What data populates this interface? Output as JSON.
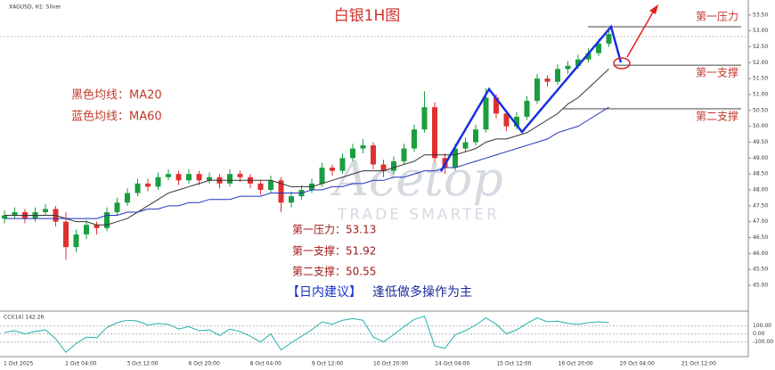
{
  "chart_data": {
    "type": "candlestick",
    "title": "白银1H图",
    "symbol_label": "XAGUSD, H1: Silver",
    "ylim": [
      44.3,
      53.97
    ],
    "yticks": [
      {
        "value": 45.0,
        "label": "45.00"
      },
      {
        "value": 45.5,
        "label": "45.50"
      },
      {
        "value": 46.0,
        "label": "46.00"
      },
      {
        "value": 46.5,
        "label": "46.50"
      },
      {
        "value": 47.0,
        "label": "47.00"
      },
      {
        "value": 47.5,
        "label": "47.50"
      },
      {
        "value": 48.0,
        "label": "48.00"
      },
      {
        "value": 48.5,
        "label": "48.50"
      },
      {
        "value": 49.0,
        "label": "49.00"
      },
      {
        "value": 49.5,
        "label": "49.50"
      },
      {
        "value": 50.0,
        "label": "50.00"
      },
      {
        "value": 50.5,
        "label": "50.50"
      },
      {
        "value": 51.0,
        "label": "51.00"
      },
      {
        "value": 51.5,
        "label": "51.50"
      },
      {
        "value": 52.0,
        "label": "52.00"
      },
      {
        "value": 52.5,
        "label": "52.50"
      },
      {
        "value": 53.0,
        "label": "53.00"
      },
      {
        "value": 53.5,
        "label": "53.50"
      }
    ],
    "up_color": "#1a9e3f",
    "down_color": "#e03030",
    "candles": [
      [
        47.1,
        47.35,
        46.95,
        47.2
      ],
      [
        47.2,
        47.45,
        47.1,
        47.3
      ],
      [
        47.3,
        47.4,
        46.95,
        47.1
      ],
      [
        47.1,
        47.45,
        47.0,
        47.3
      ],
      [
        47.3,
        47.55,
        47.2,
        47.4
      ],
      [
        47.4,
        47.5,
        46.85,
        47.0
      ],
      [
        47.0,
        47.3,
        45.8,
        46.2
      ],
      [
        46.2,
        46.75,
        46.05,
        46.6
      ],
      [
        46.6,
        47.05,
        46.45,
        46.9
      ],
      [
        46.9,
        47.0,
        46.6,
        46.8
      ],
      [
        46.8,
        47.45,
        46.7,
        47.3
      ],
      [
        47.3,
        47.75,
        47.2,
        47.6
      ],
      [
        47.6,
        48.05,
        47.5,
        47.9
      ],
      [
        47.9,
        48.35,
        47.8,
        48.2
      ],
      [
        48.2,
        48.35,
        47.95,
        48.1
      ],
      [
        48.1,
        48.55,
        48.0,
        48.4
      ],
      [
        48.4,
        48.65,
        48.3,
        48.5
      ],
      [
        48.5,
        48.6,
        48.15,
        48.3
      ],
      [
        48.3,
        48.65,
        48.2,
        48.5
      ],
      [
        48.5,
        48.6,
        48.15,
        48.3
      ],
      [
        48.3,
        48.55,
        48.2,
        48.4
      ],
      [
        48.4,
        48.5,
        48.05,
        48.2
      ],
      [
        48.2,
        48.65,
        48.1,
        48.5
      ],
      [
        48.5,
        48.6,
        48.25,
        48.4
      ],
      [
        48.4,
        48.5,
        48.05,
        48.2
      ],
      [
        48.2,
        48.3,
        47.85,
        48.0
      ],
      [
        48.0,
        48.45,
        47.9,
        48.3
      ],
      [
        48.3,
        48.4,
        47.3,
        47.6
      ],
      [
        47.6,
        47.95,
        47.45,
        47.8
      ],
      [
        47.8,
        48.15,
        47.7,
        48.0
      ],
      [
        48.0,
        48.35,
        47.9,
        48.2
      ],
      [
        48.2,
        48.85,
        48.1,
        48.7
      ],
      [
        48.7,
        48.8,
        48.45,
        48.6
      ],
      [
        48.6,
        49.15,
        48.5,
        49.0
      ],
      [
        49.0,
        49.45,
        48.9,
        49.3
      ],
      [
        49.3,
        49.6,
        49.15,
        49.4
      ],
      [
        49.4,
        49.5,
        48.65,
        48.8
      ],
      [
        48.8,
        48.95,
        48.4,
        48.6
      ],
      [
        48.6,
        49.05,
        48.5,
        48.9
      ],
      [
        48.9,
        49.45,
        48.8,
        49.3
      ],
      [
        49.3,
        50.05,
        49.2,
        49.9
      ],
      [
        49.9,
        51.1,
        49.8,
        50.6
      ],
      [
        50.6,
        50.75,
        48.85,
        49.0
      ],
      [
        49.0,
        49.15,
        48.5,
        48.7
      ],
      [
        48.7,
        49.45,
        48.6,
        49.3
      ],
      [
        49.3,
        49.65,
        49.2,
        49.5
      ],
      [
        49.5,
        50.05,
        49.4,
        49.9
      ],
      [
        49.9,
        51.2,
        49.8,
        50.9
      ],
      [
        50.9,
        51.0,
        50.25,
        50.4
      ],
      [
        50.4,
        50.5,
        49.85,
        50.0
      ],
      [
        50.0,
        50.45,
        49.9,
        50.3
      ],
      [
        50.3,
        50.95,
        50.2,
        50.8
      ],
      [
        50.8,
        51.65,
        50.7,
        51.5
      ],
      [
        51.5,
        51.6,
        51.25,
        51.4
      ],
      [
        51.4,
        51.95,
        51.3,
        51.8
      ],
      [
        51.8,
        52.05,
        51.65,
        51.9
      ],
      [
        51.9,
        52.25,
        51.8,
        52.1
      ],
      [
        52.1,
        52.45,
        52.0,
        52.3
      ],
      [
        52.3,
        52.75,
        52.2,
        52.6
      ],
      [
        52.6,
        53.05,
        52.5,
        52.9
      ]
    ],
    "overlays": [
      {
        "color": "#333333",
        "values": [
          47.2,
          47.2,
          47.2,
          47.2,
          47.2,
          47.2,
          47.1,
          47.0,
          47.0,
          46.9,
          46.9,
          47.0,
          47.1,
          47.3,
          47.5,
          47.7,
          47.9,
          48.0,
          48.1,
          48.2,
          48.3,
          48.3,
          48.3,
          48.3,
          48.3,
          48.3,
          48.3,
          48.2,
          48.1,
          48.1,
          48.1,
          48.2,
          48.3,
          48.4,
          48.5,
          48.6,
          48.6,
          48.6,
          48.7,
          48.8,
          48.9,
          49.1,
          49.1,
          49.1,
          49.1,
          49.2,
          49.3,
          49.5,
          49.6,
          49.6,
          49.7,
          49.8,
          50.0,
          50.2,
          50.4,
          50.7,
          50.9,
          51.2,
          51.5,
          51.8
        ]
      },
      {
        "color": "#2233bb",
        "values": [
          47.1,
          47.1,
          47.1,
          47.1,
          47.1,
          47.1,
          47.1,
          47.1,
          47.1,
          47.1,
          47.2,
          47.2,
          47.3,
          47.3,
          47.4,
          47.4,
          47.5,
          47.5,
          47.6,
          47.6,
          47.7,
          47.7,
          47.7,
          47.8,
          47.8,
          47.8,
          47.9,
          47.9,
          47.9,
          47.9,
          48.0,
          48.0,
          48.1,
          48.1,
          48.2,
          48.2,
          48.3,
          48.3,
          48.4,
          48.4,
          48.5,
          48.6,
          48.6,
          48.7,
          48.7,
          48.8,
          48.9,
          49.0,
          49.1,
          49.2,
          49.3,
          49.4,
          49.5,
          49.6,
          49.8,
          49.9,
          50.0,
          50.2,
          50.4,
          50.6
        ]
      }
    ],
    "ma_notes": [
      "黑色均线：MA20",
      "蓝色均线：MA60"
    ],
    "levels": [
      {
        "label": "第一压力",
        "note": "第一压力：53.13",
        "value": 53.13
      },
      {
        "label": "第一支撑",
        "note": "第一支撑：51.92",
        "value": 51.92
      },
      {
        "label": "第二支撑",
        "note": "第二支撑：50.55",
        "value": 50.55
      }
    ],
    "advice": {
      "tag": "【日内建议】",
      "text": "逢低做多操作为主"
    },
    "watermark": {
      "brand": "Acetop",
      "tagline": "TRADE SMARTER"
    },
    "x_labels": [
      "1 Oct 2025",
      "2 Oct 04:00",
      "3 Oct 12:00",
      "6 Oct 20:00",
      "8 Oct 04:00",
      "9 Oct 12:00",
      "10 Oct 20:00",
      "14 Oct 04:00",
      "15 Oct 12:00",
      "16 Oct 20:00",
      "20 Oct 04:00",
      "21 Oct 12:00"
    ],
    "cci": {
      "label": "CCI(14) 142.26",
      "color": "#20b2aa",
      "ylim": [
        -250,
        250
      ],
      "yticks": [
        {
          "value": 100,
          "label": "100.00"
        },
        {
          "value": 0,
          "label": "0.00"
        },
        {
          "value": -100,
          "label": "-100.00"
        }
      ],
      "values": [
        20,
        40,
        0,
        30,
        50,
        -60,
        -230,
        -120,
        -40,
        -50,
        80,
        140,
        170,
        160,
        110,
        130,
        120,
        60,
        90,
        40,
        50,
        -20,
        60,
        30,
        -30,
        -100,
        0,
        -200,
        -110,
        -30,
        50,
        150,
        120,
        170,
        190,
        170,
        -40,
        -100,
        -10,
        90,
        180,
        220,
        -150,
        -180,
        -10,
        40,
        110,
        200,
        120,
        0,
        50,
        130,
        200,
        150,
        160,
        130,
        120,
        140,
        150,
        142.26
      ]
    }
  }
}
